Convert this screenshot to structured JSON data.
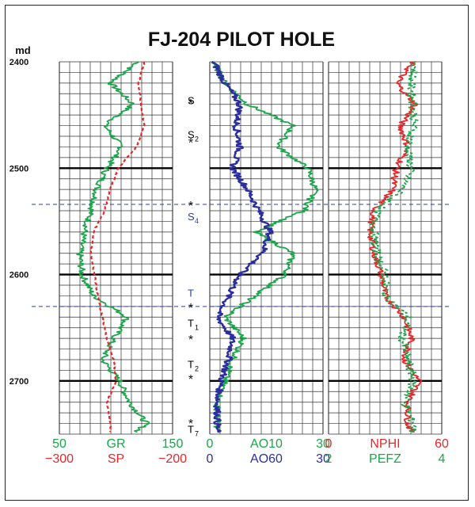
{
  "chart_data": {
    "type": "line",
    "title": "FJ-204  PILOT  HOLE",
    "depth_unit": "md",
    "depth_range": [
      2400,
      2750
    ],
    "depth_ticks": [
      "2400",
      "2500",
      "2600",
      "2700"
    ],
    "colors": {
      "gr": "#1aa64a",
      "sp": "#e8262a",
      "ao10": "#1aa64a",
      "ao60": "#2b2f9e",
      "nphi": "#e8262a",
      "pefz": "#1aa64a",
      "marker_blue": "#2b3fa0"
    },
    "tracks": [
      {
        "name": "track-1",
        "scales": [
          {
            "curve": "GR",
            "left": "50",
            "right": "150",
            "min": 50,
            "max": 150,
            "color": "#1aa64a"
          },
          {
            "curve": "SP",
            "left": "−300",
            "right": "−200",
            "min": -300,
            "max": -200,
            "color": "#e8262a"
          }
        ]
      },
      {
        "name": "track-2",
        "scales": [
          {
            "curve": "AO10",
            "left": "0",
            "right": "30",
            "min": 0,
            "max": 30,
            "color": "#1aa64a"
          },
          {
            "curve": "AO60",
            "left": "0",
            "right": "30",
            "min": 0,
            "max": 30,
            "color": "#2b2f9e"
          }
        ]
      },
      {
        "name": "track-3",
        "scales": [
          {
            "curve": "NPHI",
            "left": "0",
            "right": "60",
            "min": 0,
            "max": 60,
            "color": "#e8262a"
          },
          {
            "curve": "PEFZ",
            "left": "2",
            "right": "4",
            "min": 2,
            "max": 4,
            "color": "#1aa64a"
          }
        ]
      }
    ],
    "series": [
      {
        "name": "GR",
        "track": 0,
        "depth": [
          2400,
          2420,
          2440,
          2460,
          2480,
          2500,
          2520,
          2540,
          2560,
          2580,
          2600,
          2620,
          2640,
          2660,
          2680,
          2700,
          2720,
          2740,
          2748
        ],
        "values": [
          120,
          95,
          115,
          90,
          105,
          92,
          83,
          78,
          72,
          68,
          70,
          80,
          110,
          98,
          88,
          103,
          112,
          127,
          118
        ]
      },
      {
        "name": "SP",
        "track": 0,
        "depth": [
          2400,
          2420,
          2440,
          2460,
          2480,
          2500,
          2520,
          2540,
          2560,
          2580,
          2600,
          2620,
          2640,
          2660,
          2680,
          2700,
          2720,
          2740,
          2748
        ],
        "values": [
          -225,
          -230,
          -228,
          -225,
          -232,
          -248,
          -255,
          -260,
          -270,
          -272,
          -269,
          -266,
          -262,
          -258,
          -252,
          -250,
          -258,
          -255,
          -255
        ]
      },
      {
        "name": "AO10",
        "track": 1,
        "depth": [
          2400,
          2420,
          2440,
          2460,
          2480,
          2500,
          2520,
          2540,
          2560,
          2580,
          2600,
          2620,
          2640,
          2660,
          2680,
          2700,
          2720,
          2740,
          2748
        ],
        "values": [
          1,
          4,
          10,
          22,
          18,
          26,
          28,
          25,
          12,
          22,
          20,
          12,
          4,
          9,
          6,
          4,
          2,
          2,
          2
        ]
      },
      {
        "name": "AO60",
        "track": 1,
        "depth": [
          2400,
          2420,
          2440,
          2460,
          2480,
          2500,
          2520,
          2540,
          2560,
          2580,
          2600,
          2620,
          2640,
          2660,
          2680,
          2700,
          2720,
          2740,
          2748
        ],
        "values": [
          1,
          4,
          8,
          7,
          8,
          6,
          10,
          13,
          16,
          14,
          8,
          5,
          2,
          6,
          5,
          3,
          2,
          2,
          2
        ]
      },
      {
        "name": "NPHI",
        "track": 2,
        "depth": [
          2400,
          2420,
          2440,
          2460,
          2480,
          2500,
          2520,
          2540,
          2560,
          2580,
          2600,
          2620,
          2640,
          2660,
          2680,
          2700,
          2720,
          2740,
          2748
        ],
        "values": [
          45,
          36,
          46,
          38,
          42,
          36,
          34,
          24,
          22,
          24,
          28,
          30,
          40,
          44,
          40,
          48,
          42,
          42,
          44
        ]
      },
      {
        "name": "PEFZ",
        "track": 2,
        "depth": [
          2400,
          2420,
          2440,
          2460,
          2480,
          2500,
          2520,
          2540,
          2560,
          2580,
          2600,
          2620,
          2640,
          2660,
          2680,
          2700,
          2720,
          2740,
          2748
        ],
        "values": [
          3.55,
          3.45,
          3.5,
          3.5,
          3.4,
          3.45,
          3.3,
          2.85,
          2.8,
          2.85,
          3.0,
          3.0,
          3.4,
          3.3,
          3.4,
          3.5,
          3.35,
          3.5,
          3.5
        ]
      }
    ],
    "markers": [
      {
        "label": "S",
        "sub": "",
        "depth": 2437,
        "star_depth": 2438,
        "color": "#000000"
      },
      {
        "label": "S",
        "sub": "2",
        "depth": 2469,
        "star_depth": 2475,
        "color": "#000000"
      },
      {
        "label": "S",
        "sub": "4",
        "depth": 2546,
        "star_depth": 2534,
        "color": "#2b3fa0"
      },
      {
        "label": "T",
        "sub": "",
        "depth": 2618,
        "star_depth": 2630,
        "color": "#2b3fa0"
      },
      {
        "label": "T",
        "sub": "1",
        "depth": 2646,
        "star_depth": 2660,
        "color": "#000000"
      },
      {
        "label": "T",
        "sub": "2",
        "depth": 2685,
        "star_depth": 2697,
        "color": "#000000"
      },
      {
        "label": "T",
        "sub": "7",
        "depth": 2746,
        "star_depth": 2739,
        "color": "#000000"
      }
    ],
    "dashed_lines_depth": [
      2534,
      2630
    ],
    "major_grid_depths": [
      2500,
      2600,
      2700
    ],
    "minor_grid_interval": 10,
    "grid": true
  }
}
